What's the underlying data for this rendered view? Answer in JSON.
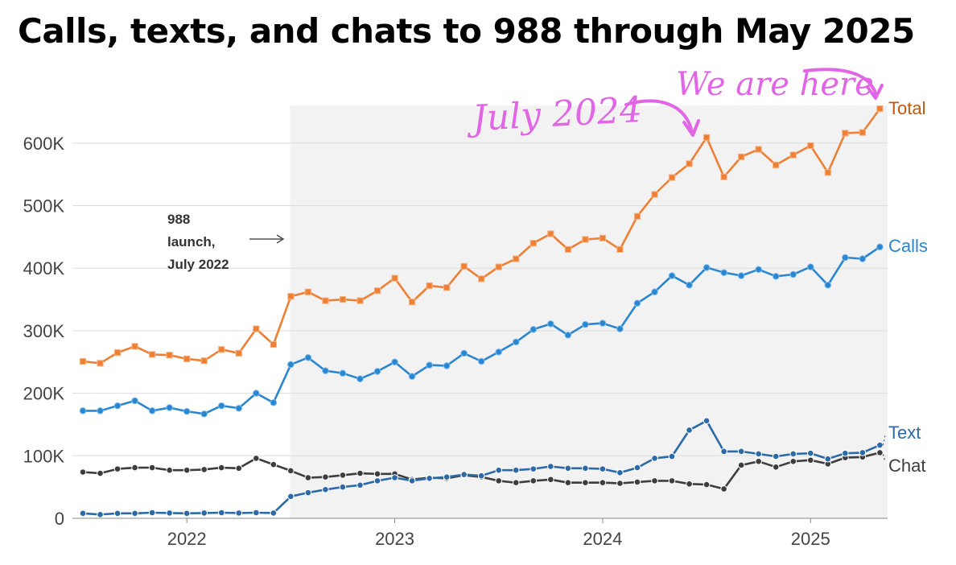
{
  "title": "Calls, texts, and chats to 988 through May 2025",
  "colors": {
    "total": "#ee8035",
    "total_label": "#c0580f",
    "calls": "#2b86d0",
    "text": "#2c6aa7",
    "chat": "#3d3d3d",
    "handwriting": "#e066e6",
    "shade": "#f2f2f2",
    "grid": "#dddddd"
  },
  "annotations": {
    "launch": [
      "988",
      "launch,",
      "July 2022"
    ],
    "july2024": "July 2024",
    "we_are_here": "We are here"
  },
  "chart_data": {
    "type": "line",
    "title": "Calls, texts, and chats to 988 through May 2025",
    "x": [
      "2021-07",
      "2021-08",
      "2021-09",
      "2021-10",
      "2021-11",
      "2021-12",
      "2022-01",
      "2022-02",
      "2022-03",
      "2022-04",
      "2022-05",
      "2022-06",
      "2022-07",
      "2022-08",
      "2022-09",
      "2022-10",
      "2022-11",
      "2022-12",
      "2023-01",
      "2023-02",
      "2023-03",
      "2023-04",
      "2023-05",
      "2023-06",
      "2023-07",
      "2023-08",
      "2023-09",
      "2023-10",
      "2023-11",
      "2023-12",
      "2024-01",
      "2024-02",
      "2024-03",
      "2024-04",
      "2024-05",
      "2024-06",
      "2024-07",
      "2024-08",
      "2024-09",
      "2024-10",
      "2024-11",
      "2024-12",
      "2025-01",
      "2025-02",
      "2025-03",
      "2025-04",
      "2025-05"
    ],
    "x_tick_labels": [
      "2022",
      "2023",
      "2024",
      "2025"
    ],
    "y_ticks": [
      0,
      100000,
      200000,
      300000,
      400000,
      500000,
      600000
    ],
    "y_tick_labels": [
      "0",
      "100K",
      "200K",
      "300K",
      "400K",
      "500K",
      "600K"
    ],
    "ylim": [
      0,
      660000
    ],
    "grid": true,
    "shaded_region": {
      "from": "2022-07",
      "to": "2025-05",
      "label": "988 launch, July 2022"
    },
    "series": [
      {
        "key": "total",
        "name": "Total",
        "marker": "square",
        "values": [
          251000,
          248000,
          265000,
          275000,
          262000,
          261000,
          255000,
          252000,
          270000,
          264000,
          303000,
          278000,
          355000,
          362000,
          348000,
          350000,
          348000,
          364000,
          384000,
          346000,
          372000,
          369000,
          403000,
          383000,
          402000,
          415000,
          440000,
          455000,
          430000,
          446000,
          448000,
          430000,
          483000,
          518000,
          545000,
          567000,
          609000,
          546000,
          578000,
          590000,
          565000,
          581000,
          596000,
          553000,
          616000,
          617000,
          655000
        ]
      },
      {
        "key": "calls",
        "name": "Calls",
        "marker": "circle",
        "values": [
          172000,
          172000,
          180000,
          188000,
          172000,
          177000,
          171000,
          167000,
          180000,
          176000,
          200000,
          185000,
          246000,
          257000,
          236000,
          232000,
          223000,
          235000,
          250000,
          227000,
          245000,
          244000,
          264000,
          251000,
          266000,
          282000,
          302000,
          311000,
          293000,
          310000,
          312000,
          303000,
          344000,
          362000,
          388000,
          373000,
          401000,
          393000,
          388000,
          398000,
          387000,
          390000,
          402000,
          373000,
          417000,
          415000,
          434000
        ]
      },
      {
        "key": "text",
        "name": "Text",
        "marker": "circle",
        "values": [
          8000,
          6000,
          8000,
          8000,
          9000,
          8500,
          8000,
          8500,
          9000,
          8500,
          9000,
          8500,
          35000,
          41000,
          46000,
          50000,
          53000,
          60000,
          65000,
          60000,
          64000,
          66000,
          70000,
          68000,
          77000,
          77000,
          79000,
          83000,
          80000,
          80000,
          79000,
          73000,
          81000,
          96000,
          99000,
          141000,
          156000,
          107000,
          107000,
          103000,
          99000,
          103000,
          104000,
          95000,
          104000,
          105000,
          117000
        ]
      },
      {
        "key": "chat",
        "name": "Chat",
        "marker": "circle",
        "values": [
          74000,
          72000,
          79000,
          81000,
          81000,
          77000,
          77000,
          78000,
          81000,
          80000,
          96000,
          86000,
          76000,
          65000,
          66000,
          69000,
          72000,
          71000,
          71000,
          62000,
          65000,
          64000,
          69000,
          66000,
          60000,
          57000,
          60000,
          62000,
          57000,
          57000,
          57000,
          56000,
          58000,
          60000,
          60000,
          55000,
          54000,
          47000,
          85000,
          91000,
          82000,
          91000,
          93000,
          87000,
          97000,
          98000,
          105000
        ]
      }
    ]
  }
}
